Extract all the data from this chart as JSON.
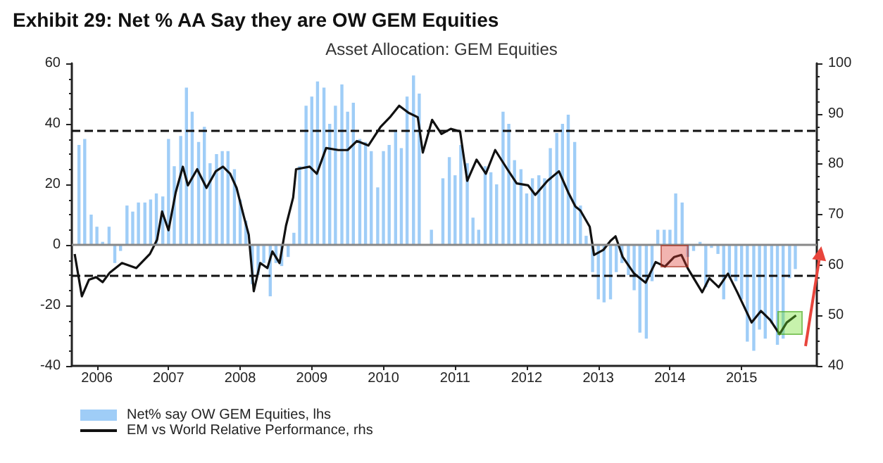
{
  "chart_data": {
    "type": "bar",
    "title": "Exhibit 29: Net % AA Say they are OW GEM Equities",
    "subtitle": "Asset Allocation: GEM Equities",
    "x": [
      2005.75,
      2005.83,
      2005.92,
      2006.0,
      2006.08,
      2006.17,
      2006.25,
      2006.33,
      2006.42,
      2006.5,
      2006.58,
      2006.67,
      2006.75,
      2006.83,
      2006.92,
      2007.0,
      2007.08,
      2007.17,
      2007.25,
      2007.33,
      2007.42,
      2007.5,
      2007.58,
      2007.67,
      2007.75,
      2007.83,
      2007.92,
      2008.0,
      2008.08,
      2008.17,
      2008.25,
      2008.33,
      2008.42,
      2008.5,
      2008.58,
      2008.67,
      2008.75,
      2008.83,
      2008.92,
      2009.0,
      2009.08,
      2009.17,
      2009.25,
      2009.33,
      2009.42,
      2009.5,
      2009.58,
      2009.67,
      2009.75,
      2009.83,
      2009.92,
      2010.0,
      2010.08,
      2010.17,
      2010.25,
      2010.33,
      2010.42,
      2010.5,
      2010.58,
      2010.67,
      2010.75,
      2010.83,
      2010.92,
      2011.0,
      2011.08,
      2011.17,
      2011.25,
      2011.33,
      2011.42,
      2011.5,
      2011.58,
      2011.67,
      2011.75,
      2011.83,
      2011.92,
      2012.0,
      2012.08,
      2012.17,
      2012.25,
      2012.33,
      2012.42,
      2012.5,
      2012.58,
      2012.67,
      2012.75,
      2012.83,
      2012.92,
      2013.0,
      2013.08,
      2013.17,
      2013.25,
      2013.33,
      2013.42,
      2013.5,
      2013.58,
      2013.67,
      2013.75,
      2013.83,
      2013.92,
      2014.0,
      2014.08,
      2014.17,
      2014.25,
      2014.33,
      2014.42,
      2014.5,
      2014.58,
      2014.67,
      2014.75,
      2014.83,
      2014.92,
      2015.0,
      2015.08,
      2015.17,
      2015.25,
      2015.33,
      2015.42,
      2015.5,
      2015.58,
      2015.67,
      2015.75
    ],
    "series": [
      {
        "name": "Net% say OW GEM Equities, lhs",
        "color": "#9fcdf7",
        "values": [
          33,
          35,
          10,
          6,
          1,
          6,
          -6,
          -2,
          13,
          11,
          14,
          14,
          15,
          17,
          16,
          35,
          26,
          36,
          52,
          44,
          34,
          39,
          27,
          30,
          31,
          31,
          25,
          15,
          8,
          -13,
          -10,
          -6,
          -17,
          -6,
          -7,
          -4,
          4,
          26,
          46,
          49,
          54,
          52,
          40,
          46,
          53,
          44,
          47,
          35,
          34,
          31,
          19,
          31,
          33,
          38,
          32,
          49,
          56,
          50,
          null,
          5,
          null,
          22,
          29,
          23,
          33,
          27,
          9,
          5,
          26,
          24,
          20,
          44,
          40,
          28,
          25,
          17,
          22,
          23,
          22,
          32,
          37,
          40,
          43,
          34,
          13,
          3,
          -9,
          -18,
          -19,
          -18,
          -9,
          -6,
          -10,
          -15,
          -29,
          -31,
          -12,
          5,
          5,
          5,
          17,
          14,
          -4,
          -2,
          1,
          -14,
          -1,
          -3,
          -18,
          -11,
          -12,
          -18,
          -32,
          -35,
          -28,
          -31,
          -26,
          -33,
          -31,
          -11,
          -8
        ]
      },
      {
        "name": "EM vs World Relative Performance, rhs",
        "type": "line",
        "axis": "y2",
        "color": "#111111",
        "x": [
          2005.69,
          2005.79,
          2005.89,
          2005.99,
          2006.08,
          2006.18,
          2006.35,
          2006.55,
          2006.74,
          2006.84,
          2006.91,
          2007.0,
          2007.1,
          2007.2,
          2007.27,
          2007.4,
          2007.53,
          2007.66,
          2007.76,
          2007.86,
          2007.95,
          2008.05,
          2008.12,
          2008.19,
          2008.28,
          2008.38,
          2008.45,
          2008.55,
          2008.64,
          2008.74,
          2008.78,
          2008.97,
          2009.07,
          2009.2,
          2009.37,
          2009.5,
          2009.63,
          2009.79,
          2009.96,
          2010.09,
          2010.22,
          2010.35,
          2010.48,
          2010.55,
          2010.68,
          2010.81,
          2010.94,
          2011.07,
          2011.17,
          2011.3,
          2011.43,
          2011.56,
          2011.73,
          2011.86,
          2012.02,
          2012.12,
          2012.29,
          2012.45,
          2012.58,
          2012.68,
          2012.75,
          2012.88,
          2012.94,
          2013.07,
          2013.17,
          2013.24,
          2013.34,
          2013.5,
          2013.66,
          2013.8,
          2013.93,
          2014.06,
          2014.16,
          2014.25,
          2014.45,
          2014.55,
          2014.68,
          2014.81,
          2014.94,
          2015.14,
          2015.27,
          2015.4,
          2015.53,
          2015.63,
          2015.76
        ],
        "values": [
          62.2,
          53.8,
          57.1,
          57.6,
          56.6,
          58.5,
          60.4,
          59.4,
          62.2,
          65,
          70.6,
          66.9,
          74.4,
          79.5,
          75.8,
          79,
          75.3,
          78.6,
          79.5,
          78.1,
          75.3,
          69.7,
          66,
          54.8,
          60.4,
          59.4,
          62.7,
          60.4,
          67.8,
          73.4,
          79,
          79.5,
          78.1,
          83.2,
          82.8,
          82.8,
          84.6,
          83.7,
          87.4,
          89.3,
          91.6,
          90.2,
          89.3,
          82.3,
          88.8,
          86,
          87,
          86.5,
          76.7,
          80.9,
          78.1,
          82.8,
          79,
          76.2,
          75.8,
          73.9,
          76.7,
          78.6,
          74.4,
          71.6,
          70.8,
          67.6,
          62,
          63,
          64.8,
          65.7,
          61.6,
          58.3,
          56.5,
          60.6,
          59.7,
          61.6,
          62,
          59.3,
          54.6,
          57.4,
          55.6,
          58.3,
          54.6,
          48.6,
          50.9,
          49.1,
          46.3,
          48.6,
          50
        ]
      }
    ],
    "xlim": [
      2005.65,
      2016.05
    ],
    "xticks": [
      2006,
      2007,
      2008,
      2009,
      2010,
      2011,
      2012,
      2013,
      2014,
      2015
    ],
    "ylim": [
      -40,
      60
    ],
    "yticks": [
      -40,
      -20,
      0,
      20,
      40,
      60
    ],
    "y2lim": [
      40,
      100
    ],
    "y2ticks": [
      40,
      50,
      60,
      70,
      80,
      90,
      100
    ],
    "ref_lines": [
      {
        "axis": "y",
        "value": 0,
        "color": "#888888",
        "line_style": "solid"
      },
      {
        "axis": "y",
        "value": 38,
        "color": "#111111",
        "line_style": "dashed"
      },
      {
        "axis": "y",
        "value": -10,
        "color": "#111111",
        "line_style": "dashed"
      }
    ],
    "grid": false,
    "legend": "bottom left"
  }
}
